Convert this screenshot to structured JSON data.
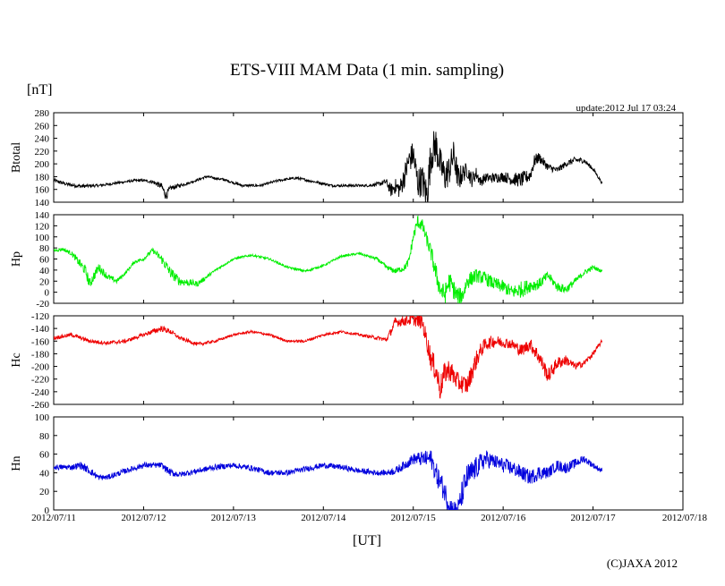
{
  "title": "ETS-VIII MAM Data (1 min. sampling)",
  "units_label": "[nT]",
  "xaxis_label": "[UT]",
  "update_text": "update:2012 Jul 17 03:24",
  "copyright": "(C)JAXA 2012",
  "chart_data": [
    {
      "type": "line",
      "name": "Btotal",
      "ylabel": "Btotal",
      "color": "#000000",
      "ylim": [
        140,
        280
      ],
      "yticks": [
        140,
        160,
        180,
        200,
        220,
        240,
        260,
        280
      ],
      "xlim": [
        0,
        7
      ],
      "x": [
        0,
        0.15,
        0.3,
        0.5,
        0.7,
        0.9,
        1.0,
        1.1,
        1.2,
        1.25,
        1.3,
        1.5,
        1.7,
        1.9,
        2.1,
        2.3,
        2.5,
        2.7,
        2.9,
        3.1,
        3.3,
        3.5,
        3.6,
        3.7,
        3.75,
        3.8,
        3.85,
        3.9,
        3.95,
        4.0,
        4.05,
        4.1,
        4.15,
        4.2,
        4.25,
        4.3,
        4.35,
        4.4,
        4.45,
        4.5,
        4.55,
        4.6,
        4.65,
        4.7,
        4.75,
        4.8,
        4.9,
        5.0,
        5.1,
        5.2,
        5.3,
        5.35,
        5.4,
        5.5,
        5.6,
        5.7,
        5.8,
        5.9,
        6.0,
        6.1
      ],
      "values": [
        174,
        168,
        165,
        166,
        170,
        174,
        174,
        172,
        165,
        150,
        162,
        170,
        180,
        175,
        166,
        166,
        174,
        178,
        172,
        166,
        166,
        166,
        168,
        172,
        158,
        165,
        160,
        180,
        205,
        215,
        170,
        175,
        150,
        215,
        230,
        200,
        180,
        190,
        215,
        175,
        185,
        190,
        175,
        185,
        172,
        178,
        178,
        180,
        176,
        175,
        182,
        205,
        210,
        195,
        190,
        200,
        206,
        205,
        192,
        170
      ],
      "noise": [
        3,
        3,
        3,
        2,
        2,
        2,
        2,
        3,
        5,
        8,
        4,
        2,
        2,
        2,
        2,
        2,
        2,
        2,
        2,
        2,
        2,
        2,
        3,
        5,
        10,
        12,
        15,
        18,
        20,
        22,
        25,
        25,
        30,
        30,
        30,
        25,
        25,
        25,
        22,
        22,
        15,
        12,
        12,
        10,
        8,
        8,
        8,
        8,
        10,
        12,
        10,
        10,
        8,
        6,
        5,
        5,
        5,
        4,
        3,
        2
      ]
    },
    {
      "type": "line",
      "name": "Hp",
      "ylabel": "Hp",
      "color": "#00ee00",
      "ylim": [
        -20,
        140
      ],
      "yticks": [
        -20,
        0,
        20,
        40,
        60,
        80,
        100,
        120,
        140
      ],
      "xlim": [
        0,
        7
      ],
      "x": [
        0,
        0.1,
        0.2,
        0.3,
        0.35,
        0.4,
        0.5,
        0.6,
        0.7,
        0.8,
        0.9,
        1.0,
        1.1,
        1.2,
        1.25,
        1.3,
        1.4,
        1.6,
        1.8,
        2.0,
        2.2,
        2.4,
        2.6,
        2.8,
        3.0,
        3.2,
        3.4,
        3.6,
        3.7,
        3.8,
        3.9,
        3.95,
        4.0,
        4.05,
        4.1,
        4.15,
        4.2,
        4.25,
        4.3,
        4.35,
        4.4,
        4.45,
        4.5,
        4.55,
        4.6,
        4.7,
        4.8,
        4.9,
        5.0,
        5.1,
        5.2,
        5.3,
        5.4,
        5.5,
        5.6,
        5.7,
        5.8,
        5.9,
        6.0,
        6.1
      ],
      "values": [
        75,
        78,
        70,
        50,
        40,
        15,
        45,
        28,
        20,
        35,
        55,
        60,
        76,
        60,
        48,
        35,
        20,
        15,
        40,
        60,
        67,
        60,
        45,
        38,
        48,
        65,
        70,
        60,
        45,
        38,
        44,
        55,
        100,
        128,
        120,
        95,
        70,
        35,
        5,
        -5,
        20,
        5,
        -10,
        -5,
        20,
        30,
        25,
        15,
        10,
        0,
        5,
        12,
        15,
        30,
        10,
        5,
        20,
        35,
        45,
        38
      ],
      "noise": [
        3,
        3,
        4,
        8,
        10,
        10,
        8,
        6,
        4,
        3,
        3,
        3,
        4,
        8,
        10,
        10,
        8,
        5,
        2,
        2,
        2,
        2,
        2,
        2,
        2,
        2,
        2,
        3,
        4,
        5,
        6,
        8,
        10,
        12,
        12,
        12,
        15,
        18,
        18,
        18,
        18,
        18,
        18,
        15,
        15,
        12,
        12,
        12,
        12,
        12,
        15,
        12,
        10,
        8,
        8,
        8,
        6,
        5,
        4,
        3
      ]
    },
    {
      "type": "line",
      "name": "Hc",
      "ylabel": "Hc",
      "color": "#ee0000",
      "ylim": [
        -260,
        -120
      ],
      "yticks": [
        -260,
        -240,
        -220,
        -200,
        -180,
        -160,
        -140,
        -120
      ],
      "xlim": [
        0,
        7
      ],
      "x": [
        0,
        0.2,
        0.4,
        0.6,
        0.8,
        1.0,
        1.1,
        1.2,
        1.3,
        1.4,
        1.5,
        1.6,
        1.8,
        2.0,
        2.2,
        2.4,
        2.6,
        2.8,
        3.0,
        3.2,
        3.4,
        3.6,
        3.7,
        3.75,
        3.8,
        3.9,
        4.0,
        4.1,
        4.2,
        4.25,
        4.3,
        4.35,
        4.4,
        4.5,
        4.6,
        4.7,
        4.75,
        4.8,
        4.9,
        5.0,
        5.1,
        5.2,
        5.3,
        5.4,
        5.5,
        5.6,
        5.7,
        5.8,
        5.9,
        6.0,
        6.1
      ],
      "values": [
        -155,
        -150,
        -160,
        -163,
        -160,
        -150,
        -145,
        -140,
        -145,
        -155,
        -160,
        -165,
        -160,
        -150,
        -145,
        -150,
        -160,
        -160,
        -150,
        -145,
        -150,
        -155,
        -158,
        -145,
        -130,
        -128,
        -125,
        -130,
        -190,
        -205,
        -235,
        -210,
        -205,
        -225,
        -230,
        -190,
        -175,
        -165,
        -160,
        -162,
        -165,
        -175,
        -165,
        -185,
        -215,
        -195,
        -190,
        -200,
        -195,
        -180,
        -160
      ],
      "noise": [
        3,
        3,
        3,
        3,
        3,
        3,
        4,
        5,
        4,
        3,
        3,
        3,
        2,
        2,
        2,
        2,
        2,
        2,
        2,
        2,
        2,
        3,
        4,
        6,
        8,
        8,
        10,
        12,
        18,
        20,
        20,
        18,
        18,
        15,
        15,
        15,
        12,
        10,
        10,
        8,
        8,
        10,
        10,
        12,
        12,
        10,
        8,
        6,
        5,
        4,
        3
      ]
    },
    {
      "type": "line",
      "name": "Hn",
      "ylabel": "Hn",
      "color": "#0000dd",
      "ylim": [
        0,
        100
      ],
      "yticks": [
        0,
        20,
        40,
        60,
        80,
        100
      ],
      "xlim": [
        0,
        7
      ],
      "x": [
        0,
        0.2,
        0.3,
        0.4,
        0.5,
        0.6,
        0.8,
        1.0,
        1.2,
        1.3,
        1.4,
        1.6,
        1.8,
        2.0,
        2.2,
        2.4,
        2.6,
        2.8,
        3.0,
        3.2,
        3.4,
        3.6,
        3.7,
        3.8,
        3.9,
        4.0,
        4.1,
        4.2,
        4.25,
        4.3,
        4.35,
        4.4,
        4.45,
        4.5,
        4.55,
        4.6,
        4.7,
        4.8,
        4.9,
        5.0,
        5.1,
        5.2,
        5.3,
        5.4,
        5.5,
        5.6,
        5.7,
        5.8,
        5.9,
        6.0,
        6.1
      ],
      "values": [
        46,
        46,
        48,
        42,
        35,
        35,
        42,
        48,
        48,
        40,
        38,
        42,
        46,
        48,
        45,
        40,
        40,
        44,
        48,
        46,
        42,
        40,
        40,
        42,
        48,
        55,
        55,
        55,
        40,
        30,
        20,
        5,
        0,
        0,
        20,
        35,
        45,
        55,
        52,
        48,
        45,
        40,
        35,
        40,
        40,
        48,
        45,
        50,
        55,
        48,
        42
      ],
      "noise": [
        3,
        3,
        4,
        4,
        3,
        3,
        3,
        3,
        3,
        4,
        3,
        3,
        3,
        3,
        3,
        3,
        3,
        3,
        3,
        3,
        3,
        3,
        3,
        4,
        5,
        6,
        8,
        10,
        12,
        12,
        12,
        12,
        10,
        12,
        15,
        15,
        12,
        10,
        8,
        8,
        8,
        8,
        8,
        8,
        6,
        6,
        6,
        5,
        4,
        3,
        3
      ]
    }
  ],
  "x_ticks": [
    "2012/07/11",
    "2012/07/12",
    "2012/07/13",
    "2012/07/14",
    "2012/07/15",
    "2012/07/16",
    "2012/07/17",
    "2012/07/18"
  ]
}
